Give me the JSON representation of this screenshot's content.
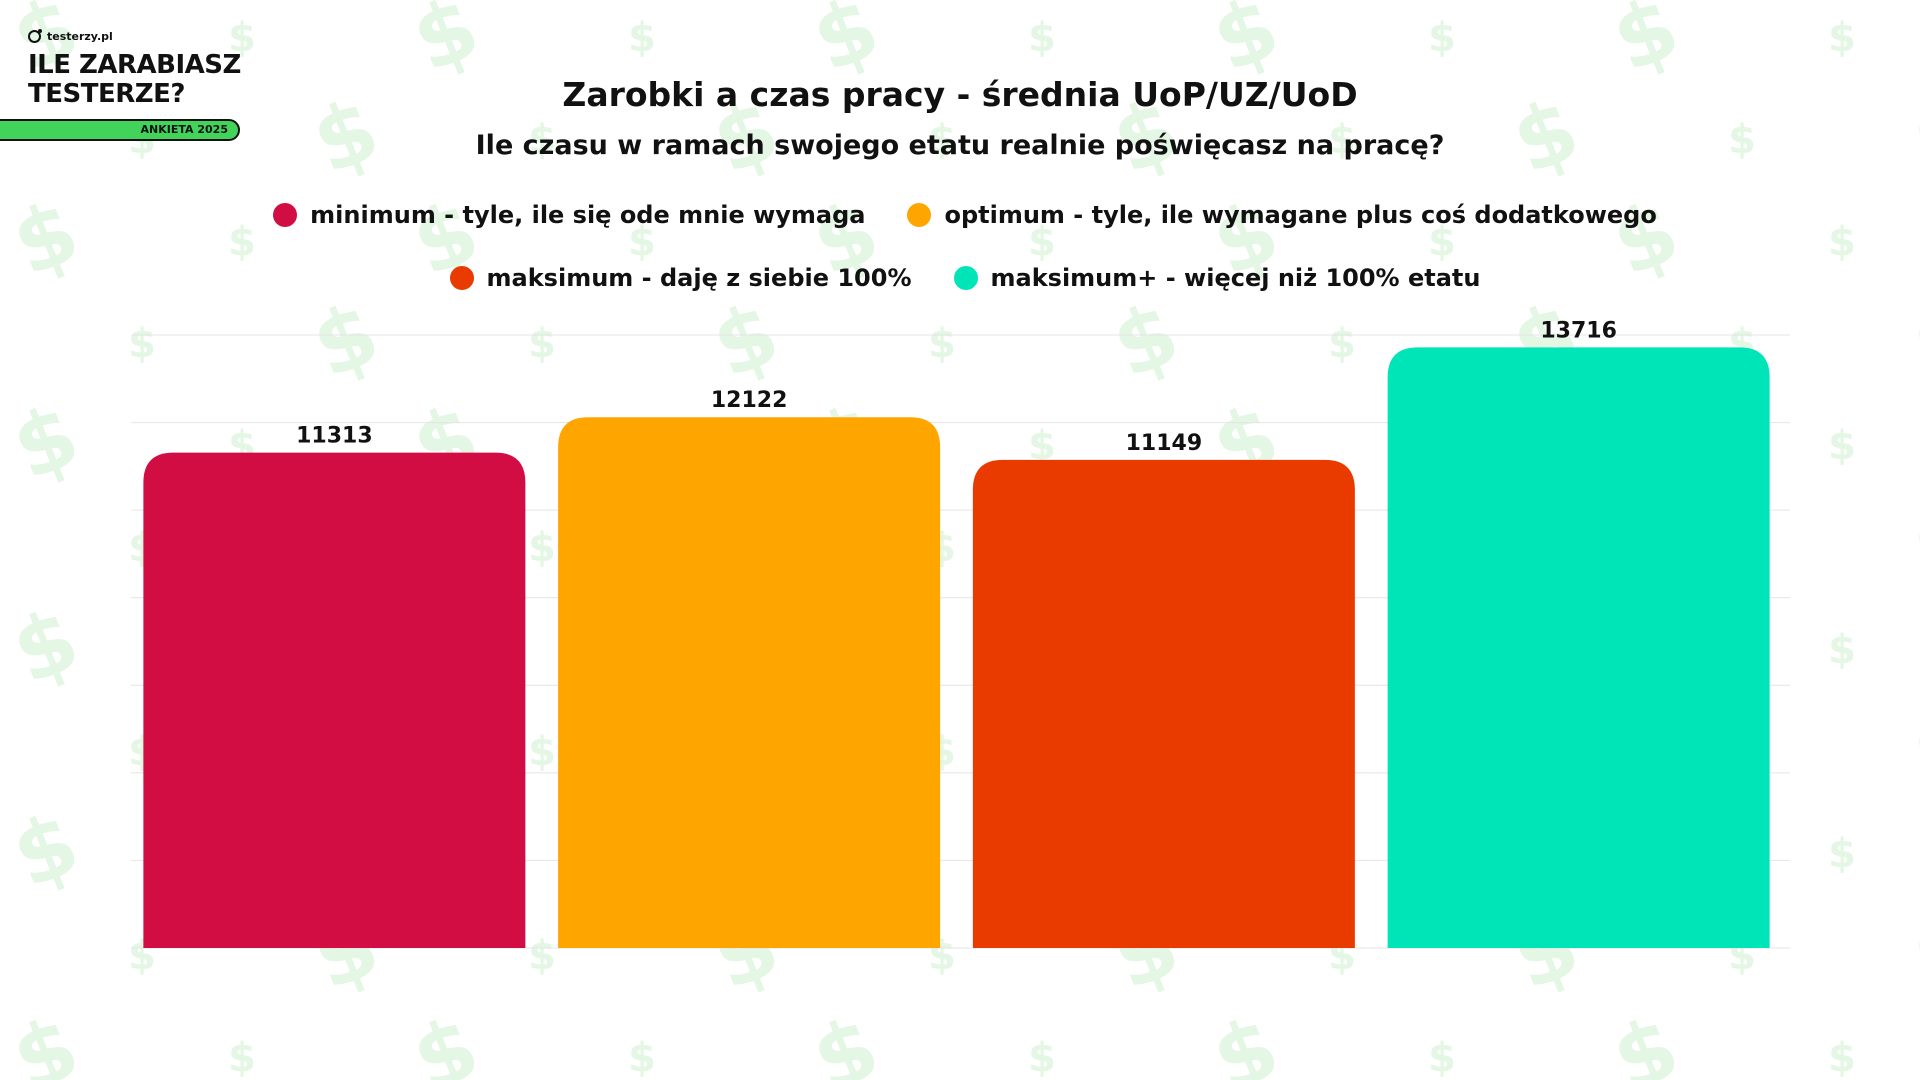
{
  "brand": {
    "site": "testerzy.pl",
    "title_line1": "ILE ZARABIASZ",
    "title_line2": "TESTERZE?",
    "badge": "ANKIETA 2025",
    "badge_color": "#41d35a"
  },
  "background": {
    "pattern_icon": "dollar-sign-icon",
    "pattern_color": "#e4f6e4"
  },
  "chart_data": {
    "type": "bar",
    "title": "Zarobki a czas pracy - średnia UoP/UZ/UoD",
    "subtitle": "Ile czasu w ramach swojego etatu realnie poświęcasz na pracę?",
    "xlabel": "",
    "ylabel": "",
    "ylim": [
      0,
      14000
    ],
    "grid": true,
    "legend_position": "top",
    "categories": [
      "minimum - tyle, ile się ode mnie wymaga",
      "optimum - tyle, ile wymagane plus coś dodatkowego",
      "maksimum - daję z siebie 100%",
      "maksimum+ - więcej niż 100% etatu"
    ],
    "values": [
      11313,
      12122,
      11149,
      13716
    ],
    "colors": [
      "#d20d43",
      "#ffa500",
      "#e93a00",
      "#00e5b8"
    ]
  }
}
